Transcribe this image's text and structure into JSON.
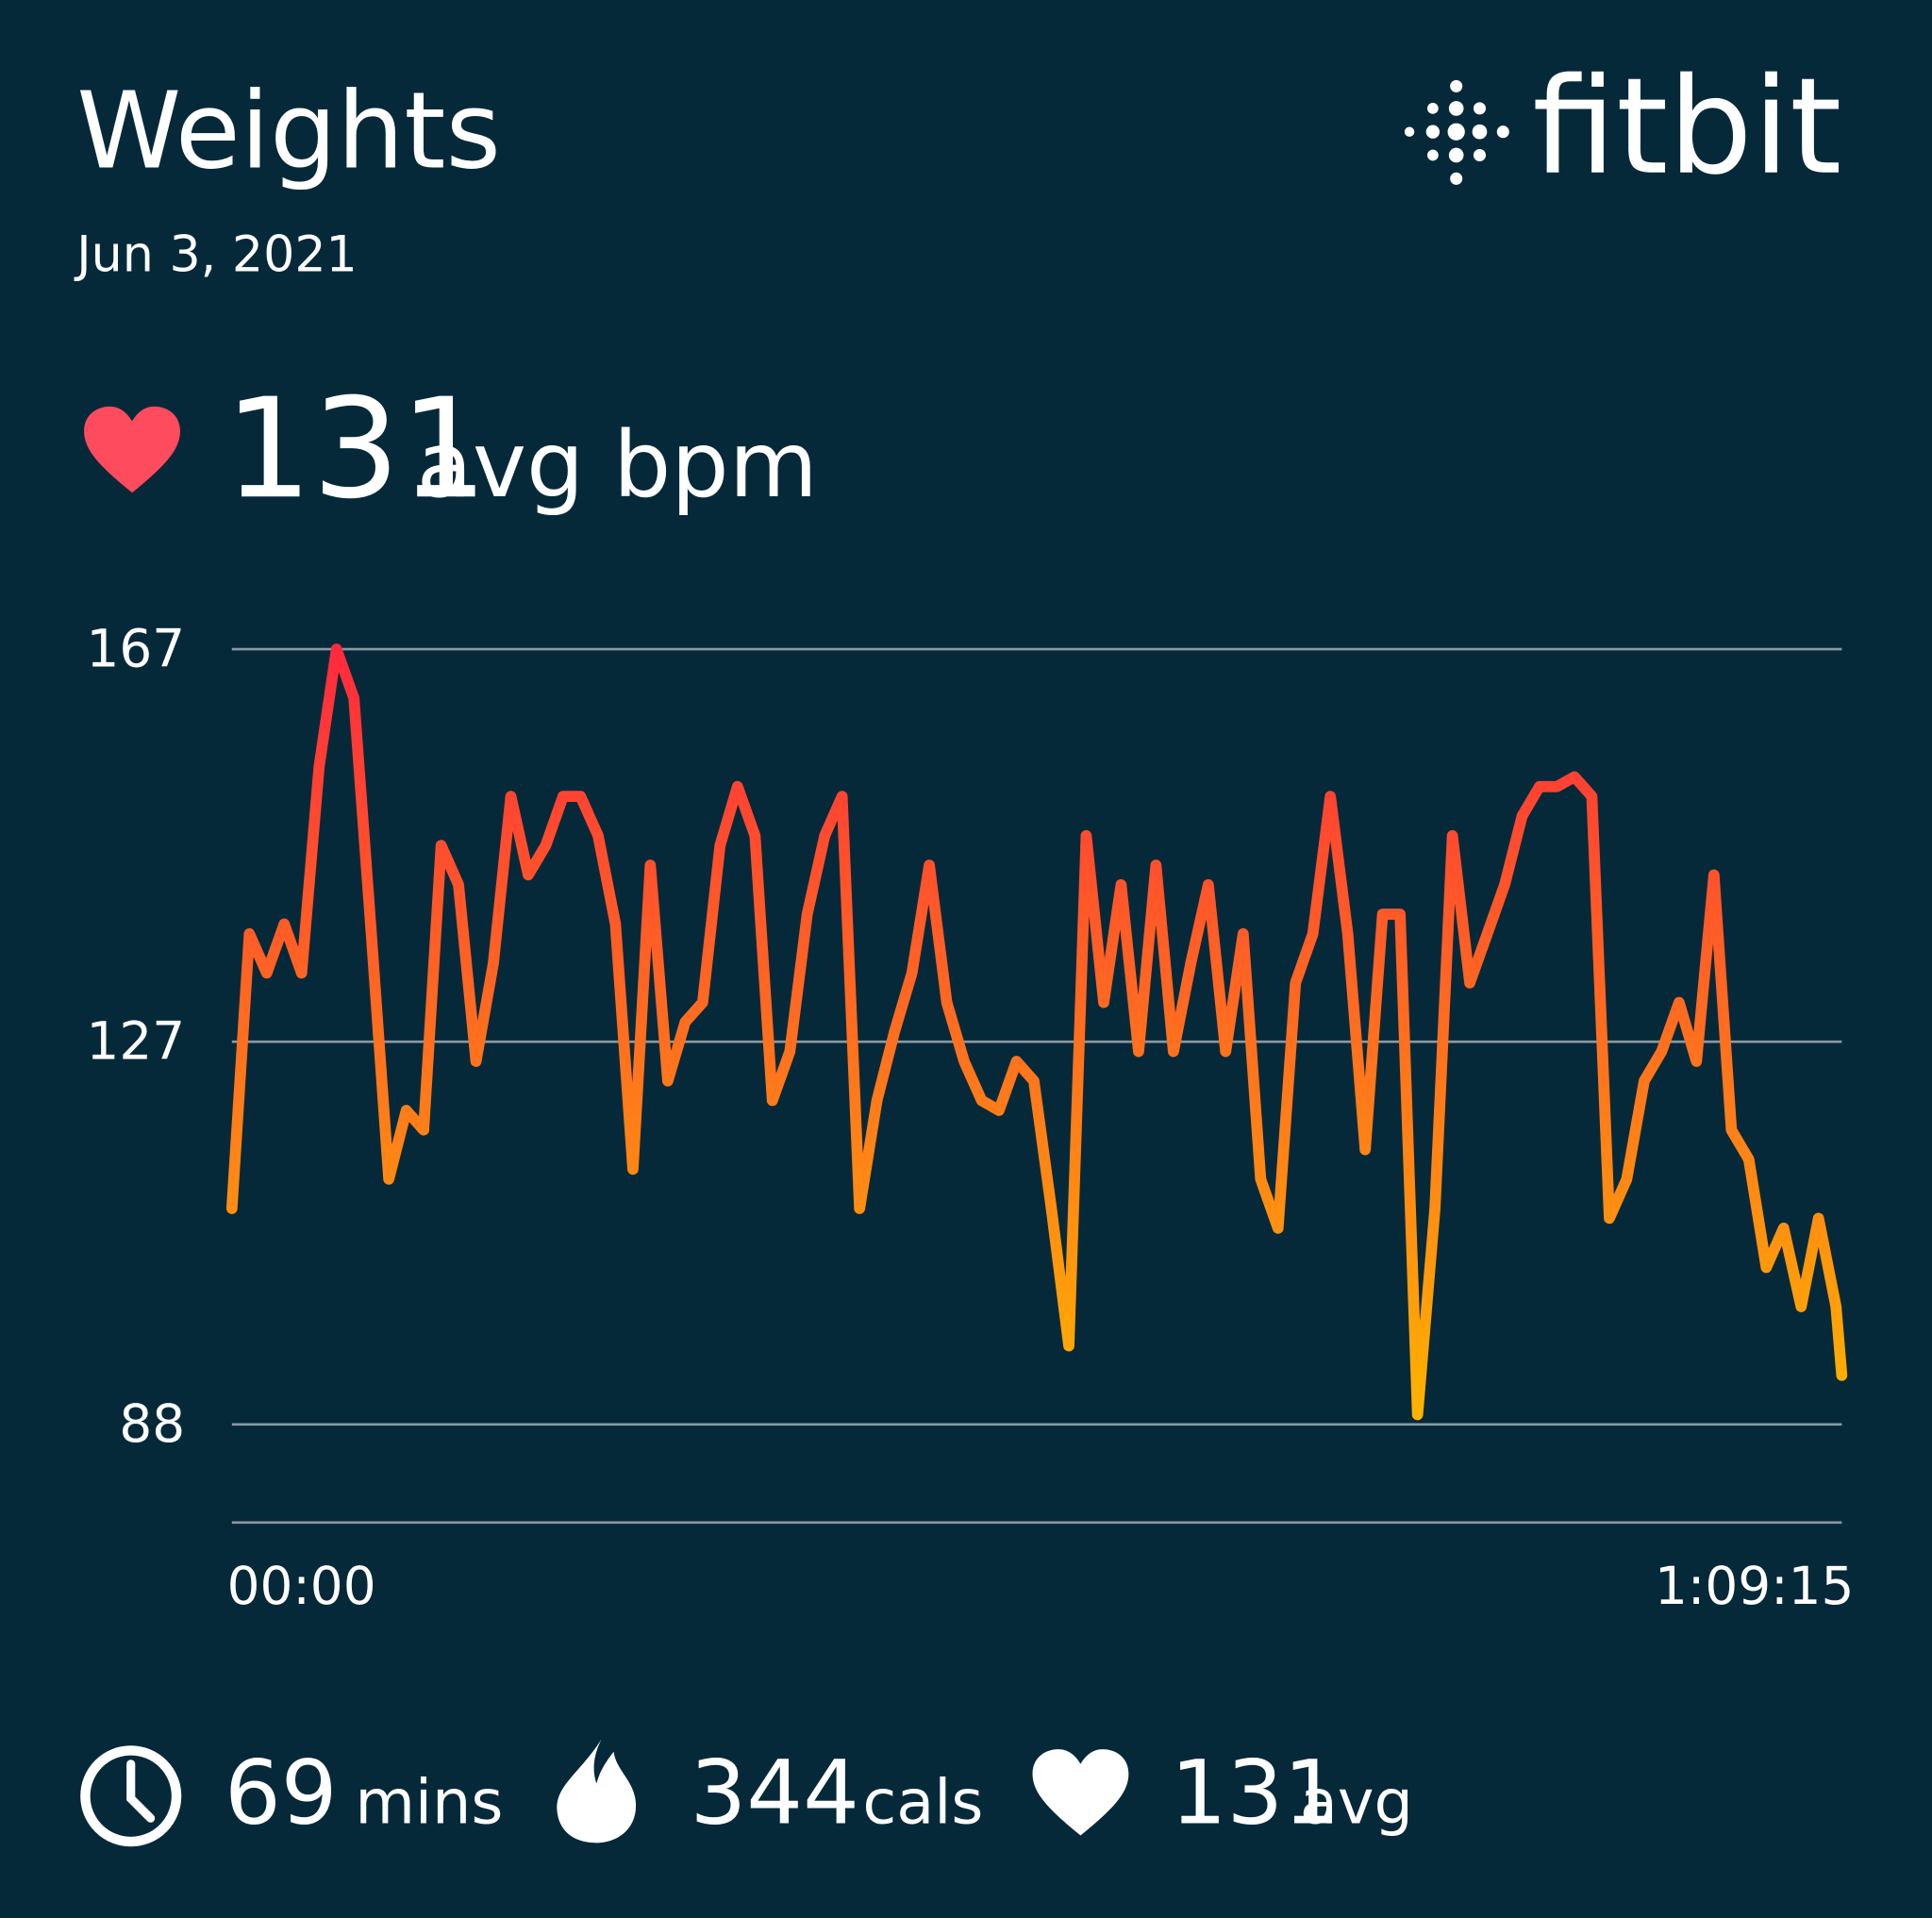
{
  "header": {
    "title": "Weights",
    "date": "Jun 3, 2021",
    "brand": "fitbit"
  },
  "summary": {
    "value": "131",
    "unit": "avg bpm"
  },
  "chart_data": {
    "type": "line",
    "x": [
      0,
      45,
      90,
      135,
      180,
      225,
      270,
      315,
      360,
      405,
      450,
      495,
      540,
      585,
      630,
      675,
      720,
      765,
      810,
      855,
      900,
      945,
      990,
      1035,
      1080,
      1125,
      1170,
      1215,
      1260,
      1305,
      1350,
      1395,
      1440,
      1485,
      1530,
      1575,
      1620,
      1665,
      1710,
      1755,
      1800,
      1845,
      1890,
      1935,
      1980,
      2025,
      2070,
      2115,
      2160,
      2205,
      2250,
      2295,
      2340,
      2385,
      2430,
      2475,
      2520,
      2565,
      2610,
      2655,
      2700,
      2745,
      2790,
      2835,
      2880,
      2925,
      2970,
      3015,
      3060,
      3105,
      3150,
      3195,
      3240,
      3285,
      3330,
      3375,
      3420,
      3465,
      3510,
      3555,
      3600,
      3645,
      3690,
      3735,
      3780,
      3825,
      3870,
      3915,
      3960,
      4005,
      4050,
      4095,
      4140,
      4155
    ],
    "values": [
      110,
      138,
      134,
      139,
      134,
      155,
      167,
      162,
      138,
      113,
      120,
      118,
      147,
      143,
      125,
      135,
      152,
      144,
      147,
      152,
      152,
      148,
      139,
      114,
      145,
      123,
      129,
      131,
      147,
      153,
      148,
      121,
      126,
      140,
      148,
      152,
      110,
      121,
      128,
      134,
      145,
      131,
      125,
      121,
      120,
      125,
      123,
      110,
      96,
      148,
      131,
      143,
      126,
      145,
      126,
      135,
      143,
      126,
      138,
      113,
      108,
      133,
      138,
      152,
      138,
      116,
      140,
      140,
      89,
      110,
      148,
      133,
      138,
      143,
      150,
      153,
      153,
      154,
      152,
      109,
      113,
      123,
      126,
      131,
      125,
      144,
      118,
      115,
      104,
      108,
      100,
      109,
      100,
      93
    ],
    "xlim": [
      0,
      4155
    ],
    "xticks": [
      {
        "value": 0,
        "label": "00:00"
      },
      {
        "value": 4155,
        "label": "1:09:15"
      }
    ],
    "ylim": [
      78,
      167
    ],
    "yticks": [
      88,
      127,
      167
    ],
    "grid": true,
    "gradient_colors": [
      "#ff2a3d",
      "#ffb400"
    ]
  },
  "footer": {
    "duration": "69",
    "duration_unit": "mins",
    "calories": "344",
    "calories_unit": "cals",
    "avg": "131",
    "avg_unit": "avg"
  }
}
